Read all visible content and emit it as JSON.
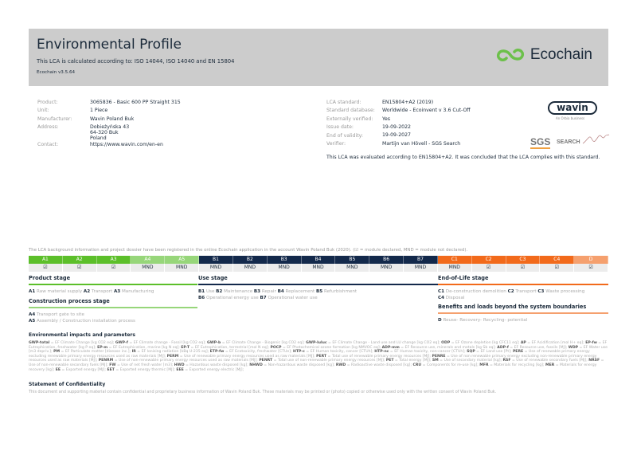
{
  "header": {
    "title": "Environmental Profile",
    "subtitle": "This LCA is calculated according to: ISO 14044, ISO 14040 and EN 15804",
    "version": "Ecochain v3.5.64",
    "logo_text": "Ecochain",
    "logo_color": "#6cc04a"
  },
  "product_info": [
    {
      "label": "Product:",
      "value": "3065836 - Basic 600 PP Straight 315"
    },
    {
      "label": "Unit:",
      "value": "1 Piece"
    },
    {
      "label": "Manufacturer:",
      "value": "Wavin Poland Buk"
    },
    {
      "label": "Address:",
      "value": "Dobieżyńska 43\n64-320 Buk\nPoland"
    },
    {
      "label": "Contact:",
      "value": "https://www.wavin.com/en-en"
    }
  ],
  "lca_info": [
    {
      "label": "LCA standard:",
      "value": "EN15804+A2 (2019)"
    },
    {
      "label": "Standard database:",
      "value": "Worldwide - Ecoinvent v 3.6 Cut-Off"
    },
    {
      "label": "Externally verified:",
      "value": "Yes"
    },
    {
      "label": "Issue date:",
      "value": "19-09-2022"
    },
    {
      "label": "End of validity:",
      "value": "19-09-2027"
    },
    {
      "label": "Verifier:",
      "value": "Martijn van Hövell - SGS Search"
    }
  ],
  "compliance": "This LCA was evaluated according to EN15804+A2. It was concluded that the LCA complies with this standard.",
  "logos": {
    "wavin": "wavin",
    "wavin_sub": "An Orbia business",
    "sgs": "SGS",
    "search": "SEARCH"
  },
  "modules_note": "The LCA background information and project dossier have been registered in the online Ecochain application in the account Wavin Poland Buk (2020). (☑ = module declared, MND = module not declared).",
  "modules": [
    {
      "code": "A1",
      "status": "☑",
      "color": "#5cbf2a"
    },
    {
      "code": "A2",
      "status": "☑",
      "color": "#5cbf2a"
    },
    {
      "code": "A3",
      "status": "☑",
      "color": "#5cbf2a"
    },
    {
      "code": "A4",
      "status": "MND",
      "color": "#97d67a"
    },
    {
      "code": "A5",
      "status": "MND",
      "color": "#97d67a"
    },
    {
      "code": "B1",
      "status": "MND",
      "color": "#13294b"
    },
    {
      "code": "B2",
      "status": "MND",
      "color": "#13294b"
    },
    {
      "code": "B3",
      "status": "MND",
      "color": "#13294b"
    },
    {
      "code": "B4",
      "status": "MND",
      "color": "#13294b"
    },
    {
      "code": "B5",
      "status": "MND",
      "color": "#13294b"
    },
    {
      "code": "B6",
      "status": "MND",
      "color": "#13294b"
    },
    {
      "code": "B7",
      "status": "MND",
      "color": "#13294b"
    },
    {
      "code": "C1",
      "status": "MND",
      "color": "#f26a1b"
    },
    {
      "code": "C2",
      "status": "☑",
      "color": "#f26a1b"
    },
    {
      "code": "C3",
      "status": "☑",
      "color": "#f26a1b"
    },
    {
      "code": "C4",
      "status": "☑",
      "color": "#f26a1b"
    },
    {
      "code": "D",
      "status": "☑",
      "color": "#f5a06e"
    }
  ],
  "stages": {
    "product": {
      "title": "Product stage",
      "items": [
        [
          "A1",
          "Raw material supply"
        ],
        [
          "A2",
          "Transport"
        ],
        [
          "A3",
          "Manufacturing"
        ]
      ]
    },
    "construction": {
      "title": "Construction process stage",
      "items": [
        [
          "A4",
          "Transport gate to site"
        ],
        [
          "A5",
          "Assembly / Construction installation process"
        ]
      ]
    },
    "use": {
      "title": "Use stage",
      "items": [
        [
          "B1",
          "Use"
        ],
        [
          "B2",
          "Maintenance"
        ],
        [
          "B3",
          "Repair"
        ],
        [
          "B4",
          "Replacement"
        ],
        [
          "B5",
          "Refurbishment"
        ],
        [
          "B6",
          "Operational energy use"
        ],
        [
          "B7",
          "Operational water use"
        ]
      ]
    },
    "eol": {
      "title": "End-of-Life stage",
      "items": [
        [
          "C1",
          "De-construction demolition"
        ],
        [
          "C2",
          "Transport"
        ],
        [
          "C3",
          "Waste processing"
        ],
        [
          "C4",
          "Disposal"
        ]
      ]
    },
    "benefits": {
      "title": "Benefits and loads beyond the system boundaries",
      "items": [
        [
          "D",
          "Reuse- Recovery- Recycling- potential"
        ]
      ]
    }
  },
  "impacts": {
    "title": "Environmental impacts and parameters",
    "text": [
      [
        "GWP-total",
        "EF Climate Change [kg CO2 eq]"
      ],
      [
        "GWP-f",
        "EF Climate change - Fossil [kg CO2 eq]"
      ],
      [
        "GWP-b",
        "EF Climate Change - Biogenic [kg CO2 eq]"
      ],
      [
        "GWP-luluc",
        "EF Climate Change - Land use and LU change [kg CO2 eq]"
      ],
      [
        "ODP",
        "EF Ozone depletion [kg CFC11 eq]"
      ],
      [
        "AP",
        "EF Acidification [mol H+ eq]"
      ],
      [
        "EP-fw",
        "EF Eutrophication, freshwater [kg P eq]"
      ],
      [
        "EP-m",
        "EF Eutrophication, marine [kg N eq]"
      ],
      [
        "EP-T",
        "EF Eutrophication, terrestrial [mol N eq]"
      ],
      [
        "POCP",
        "EF Photochemical ozone formation [kg NMVOC eq]"
      ],
      [
        "ADP-mm",
        "EF Resource use, minerals and metals [kg Sb eq]"
      ],
      [
        "ADP-f",
        "EF Resource use, fossils [MJ]"
      ],
      [
        "WDP",
        "EF Water use [m3 depriv.]"
      ],
      [
        "PM",
        "EF Particulate matter [disease inc.]"
      ],
      [
        "IR",
        "EF Ionising radiation [kBq U-235 eq]"
      ],
      [
        "ETP-fw",
        "EF Ecotoxicity, freshwater [CTUe]"
      ],
      [
        "HTP-c",
        "EF Human toxicity, cancer [CTUh]"
      ],
      [
        "HTP-nc",
        "EF Human toxicity, non-cancer [CTUh]"
      ],
      [
        "SQP",
        "EF Land use [Pt]"
      ],
      [
        "PERE",
        "Use of renewable primary energy excluding renewable primary energy resources used as raw materials [MJ]"
      ],
      [
        "PERM",
        "Use of renewable primary energy resources used as raw materials [MJ]"
      ],
      [
        "PERT",
        "Total use of renewable primary energy resources [MJ]"
      ],
      [
        "PENRE",
        "Use of non renewable primary energy excluding non-renewable primary energy resources used as raw materials [MJ]"
      ],
      [
        "PENRM",
        "Use of non-renewable primary energy resources used as raw materials [MJ]"
      ],
      [
        "PENRT",
        "Total use of non-renewable primary energy resources [MJ]"
      ],
      [
        "PET",
        "Total energy [MJ]"
      ],
      [
        "SM",
        "Use of secondary material [kg]"
      ],
      [
        "RSF",
        "Use of renewable secondary fuels [MJ]"
      ],
      [
        "NRSF",
        "Use of non-renewable secondary fuels [MJ]"
      ],
      [
        "FW",
        "Use of net fresh water [m3]"
      ],
      [
        "HWD",
        "Hazardous waste disposed [kg]"
      ],
      [
        "NHWD",
        "Non-hazardous waste disposed [kg]"
      ],
      [
        "RWD",
        "Radioactive waste disposed [kg]"
      ],
      [
        "CRU",
        "Components for re-use [kg]"
      ],
      [
        "MFR",
        "Materials for recycling [kg]"
      ],
      [
        "MER",
        "Materials for energy recovery [kg]"
      ],
      [
        "EE",
        "Exported energy [MJ]"
      ],
      [
        "EET",
        "Exported energy thermic [MJ]"
      ],
      [
        "EEE",
        "Exported energy electric [MJ]"
      ]
    ]
  },
  "confidentiality": {
    "title": "Statement of Confidentiality",
    "text": "This document and supporting material contain confidential and proprietary business information of Wavin Poland Buk. These materials may be printed or (photo) copied or otherwise used only with the written consent of Wavin Poland Buk."
  }
}
